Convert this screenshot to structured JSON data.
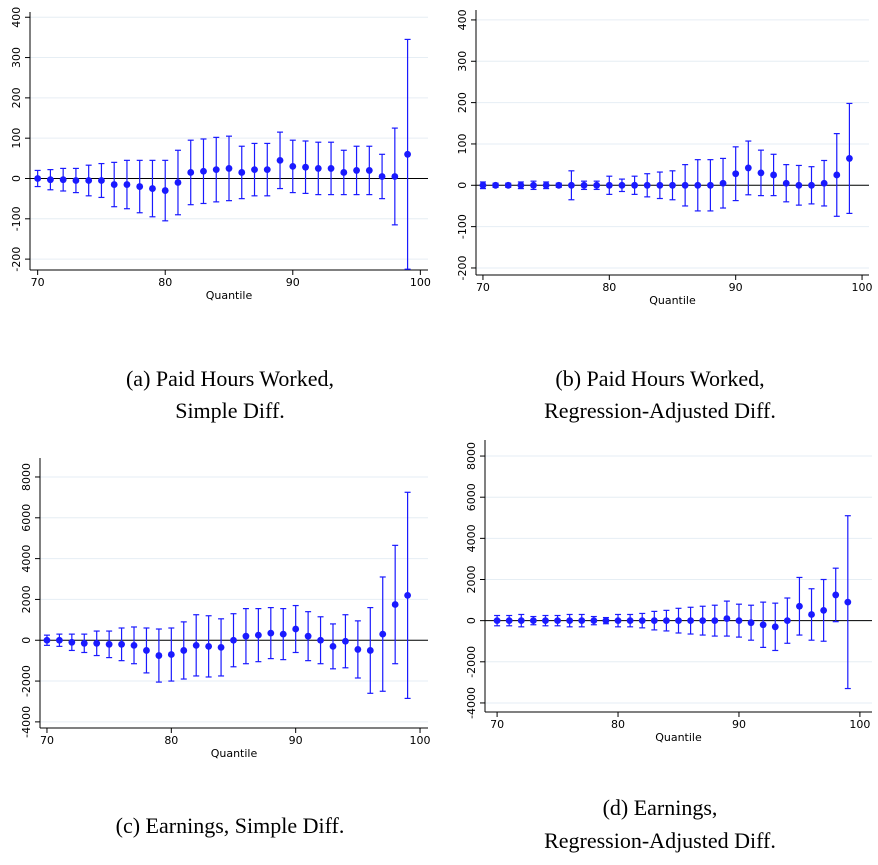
{
  "chart_data": [
    {
      "type": "scatter",
      "caption": [
        "(a) Paid Hours Worked,",
        "Simple Diff."
      ],
      "x_label": "Quantile",
      "color": "#1a1aff",
      "grid": true,
      "hline": 0,
      "x": [
        70,
        71,
        72,
        73,
        74,
        75,
        76,
        77,
        78,
        79,
        80,
        81,
        82,
        83,
        84,
        85,
        86,
        87,
        88,
        89,
        90,
        91,
        92,
        93,
        94,
        95,
        96,
        97,
        98,
        99
      ],
      "values": [
        0,
        -3,
        -3,
        -5,
        -5,
        -5,
        -15,
        -15,
        -20,
        -25,
        -30,
        -10,
        15,
        18,
        22,
        25,
        15,
        22,
        22,
        45,
        30,
        28,
        25,
        25,
        15,
        20,
        20,
        5,
        5,
        60
      ],
      "errors": [
        20,
        25,
        28,
        30,
        38,
        42,
        55,
        60,
        65,
        70,
        75,
        80,
        80,
        80,
        80,
        80,
        65,
        65,
        65,
        70,
        65,
        65,
        65,
        65,
        55,
        60,
        60,
        55,
        120,
        285
      ],
      "xlim": [
        69.4,
        100.6
      ],
      "xticks": [
        70,
        80,
        90,
        100
      ],
      "ylim": [
        -227,
        413
      ],
      "yticks": [
        -200,
        -100,
        0,
        100,
        200,
        300,
        400
      ]
    },
    {
      "type": "scatter",
      "caption": [
        "(b) Paid Hours Worked,",
        "Regression-Adjusted Diff."
      ],
      "x_label": "Quantile",
      "color": "#1a1aff",
      "grid": true,
      "hline": 0,
      "x": [
        70,
        71,
        72,
        73,
        74,
        75,
        76,
        77,
        78,
        79,
        80,
        81,
        82,
        83,
        84,
        85,
        86,
        87,
        88,
        89,
        90,
        91,
        92,
        93,
        94,
        95,
        96,
        97,
        98,
        99
      ],
      "values": [
        0,
        0,
        0,
        0,
        0,
        0,
        0,
        0,
        0,
        0,
        0,
        0,
        0,
        0,
        0,
        0,
        0,
        0,
        0,
        5,
        28,
        42,
        30,
        25,
        5,
        0,
        0,
        5,
        25,
        65
      ],
      "errors": [
        8,
        5,
        5,
        8,
        10,
        8,
        5,
        35,
        10,
        10,
        22,
        15,
        22,
        28,
        32,
        35,
        50,
        62,
        62,
        60,
        65,
        65,
        55,
        50,
        45,
        48,
        45,
        55,
        100,
        133
      ],
      "xlim": [
        69.45,
        100.55
      ],
      "xticks": [
        70,
        80,
        90,
        100
      ],
      "ylim": [
        -217,
        424
      ],
      "yticks": [
        -200,
        -100,
        0,
        100,
        200,
        300,
        400
      ]
    },
    {
      "type": "scatter",
      "caption": [
        "(c) Earnings, Simple Diff."
      ],
      "x_label": "Quantile",
      "color": "#1a1aff",
      "grid": true,
      "hline": 0,
      "x": [
        70,
        71,
        72,
        73,
        74,
        75,
        76,
        77,
        78,
        79,
        80,
        81,
        82,
        83,
        84,
        85,
        86,
        87,
        88,
        89,
        90,
        91,
        92,
        93,
        94,
        95,
        96,
        97,
        98,
        99
      ],
      "values": [
        0,
        0,
        -100,
        -150,
        -150,
        -200,
        -200,
        -250,
        -500,
        -750,
        -700,
        -500,
        -250,
        -300,
        -350,
        0,
        200,
        250,
        350,
        300,
        550,
        200,
        0,
        -300,
        -50,
        -450,
        -500,
        300,
        1750,
        2200
      ],
      "errors": [
        250,
        300,
        400,
        450,
        600,
        650,
        800,
        900,
        1100,
        1300,
        1300,
        1400,
        1500,
        1500,
        1400,
        1300,
        1350,
        1300,
        1250,
        1250,
        1150,
        1200,
        1150,
        1100,
        1300,
        1400,
        2100,
        2800,
        2900,
        5050
      ],
      "xlim": [
        69.44,
        100.64
      ],
      "xticks": [
        70,
        80,
        90,
        100
      ],
      "ylim": [
        -4300,
        8930
      ],
      "yticks": [
        -4000,
        -2000,
        0,
        2000,
        4000,
        6000,
        8000
      ]
    },
    {
      "type": "scatter",
      "caption": [
        "(d) Earnings,",
        "Regression-Adjusted Diff."
      ],
      "x_label": "Quantile",
      "color": "#1a1aff",
      "grid": true,
      "hline": 0,
      "x": [
        70,
        71,
        72,
        73,
        74,
        75,
        76,
        77,
        78,
        79,
        80,
        81,
        82,
        83,
        84,
        85,
        86,
        87,
        88,
        89,
        90,
        91,
        92,
        93,
        94,
        95,
        96,
        97,
        98,
        99
      ],
      "values": [
        0,
        0,
        0,
        0,
        0,
        0,
        0,
        0,
        0,
        0,
        0,
        0,
        0,
        0,
        0,
        0,
        0,
        0,
        0,
        100,
        0,
        -100,
        -200,
        -300,
        0,
        700,
        300,
        500,
        1250,
        900
      ],
      "errors": [
        250,
        250,
        300,
        200,
        250,
        250,
        300,
        300,
        200,
        150,
        300,
        300,
        350,
        450,
        500,
        600,
        650,
        700,
        750,
        850,
        800,
        850,
        1100,
        1150,
        1100,
        1400,
        1250,
        1500,
        1300,
        4200
      ],
      "xlim": [
        69.0,
        101.0
      ],
      "xticks": [
        70,
        80,
        90,
        100
      ],
      "ylim": [
        -4440,
        8780
      ],
      "yticks": [
        -4000,
        -2000,
        0,
        2000,
        4000,
        6000,
        8000
      ]
    }
  ]
}
